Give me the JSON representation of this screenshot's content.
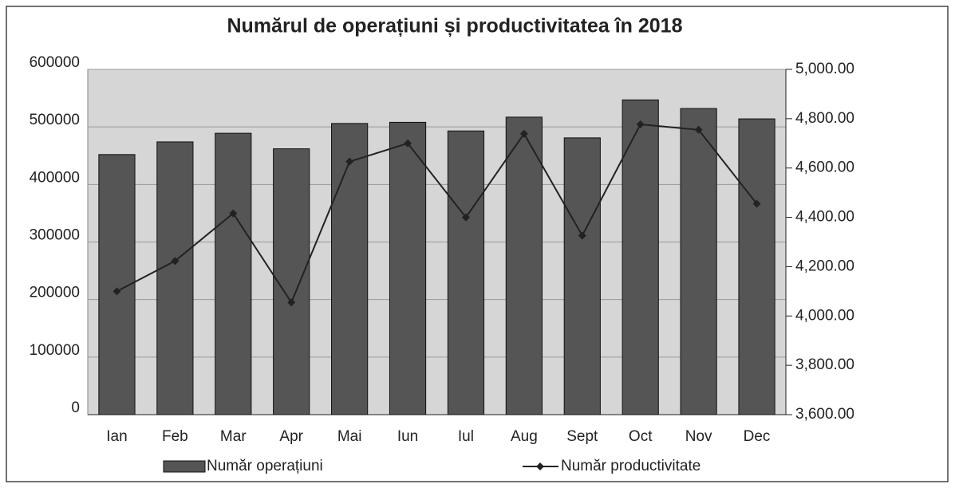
{
  "chart_data": {
    "type": "bar_line",
    "title": "Numărul de operațiuni și productivitatea în 2018",
    "categories": [
      "Ian",
      "Feb",
      "Mar",
      "Apr",
      "Mai",
      "Iun",
      "Iul",
      "Aug",
      "Sept",
      "Oct",
      "Nov",
      "Dec"
    ],
    "series": [
      {
        "name": "Număr operațiuni",
        "type": "bar",
        "color": "#555555",
        "values": [
          452000,
          474000,
          489000,
          462000,
          506000,
          508000,
          493000,
          517000,
          481000,
          547000,
          532000,
          514000
        ]
      },
      {
        "name": "Număr productivitate",
        "type": "line",
        "axis": "y2",
        "color": "#222222",
        "values": [
          4100,
          4223,
          4416,
          4055,
          4626,
          4700,
          4400,
          4739,
          4326,
          4777,
          4755,
          4455
        ]
      }
    ],
    "ylim": [
      0,
      600000
    ],
    "yticks": [
      0,
      100000,
      200000,
      300000,
      400000,
      500000,
      600000
    ],
    "y2lim": [
      3600,
      5000
    ],
    "y2ticks": [
      {
        "value": 3600,
        "label": "3,600.00"
      },
      {
        "value": 3800,
        "label": "3,800.00"
      },
      {
        "value": 4000,
        "label": "4,000.00"
      },
      {
        "value": 4200,
        "label": "4,200.00"
      },
      {
        "value": 4400,
        "label": "4,400.00"
      },
      {
        "value": 4600,
        "label": "4,600.00"
      },
      {
        "value": 4800,
        "label": "4,800.00"
      },
      {
        "value": 5000,
        "label": "5,000.00"
      }
    ],
    "grid": true,
    "legend": "bottom"
  }
}
